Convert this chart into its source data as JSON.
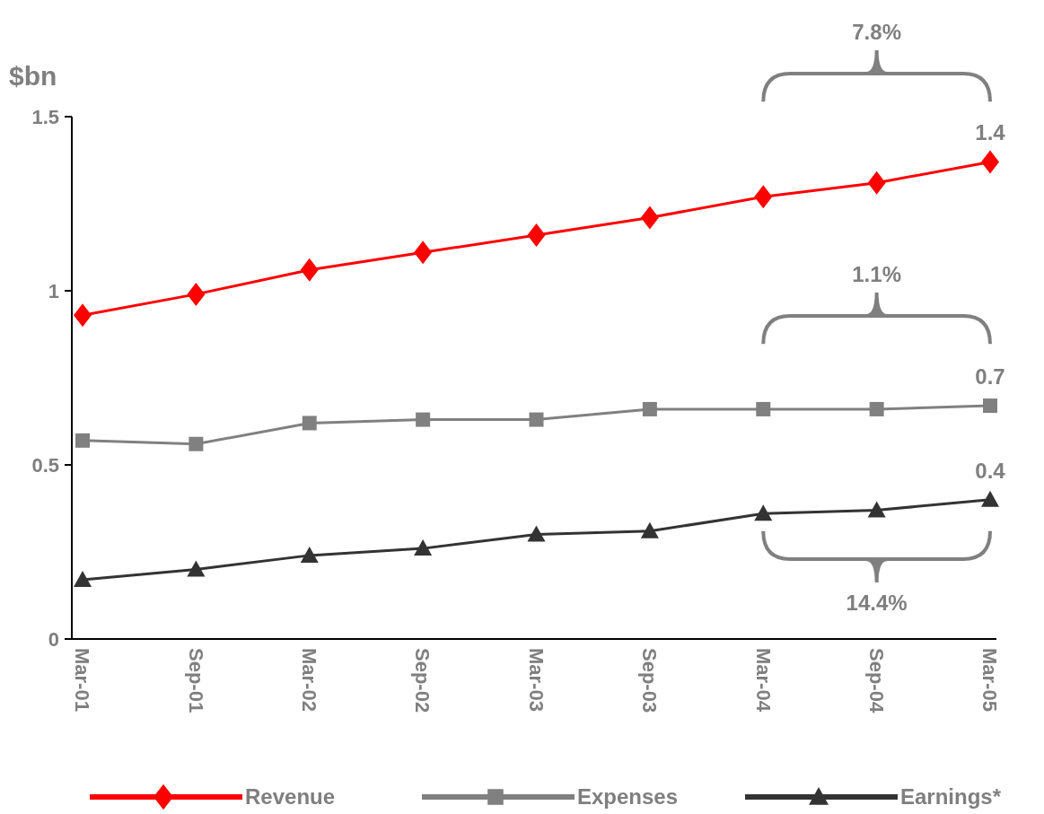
{
  "chart_data": {
    "type": "line",
    "ylabel": "$bn",
    "categories": [
      "Mar-01",
      "Sep-01",
      "Mar-02",
      "Sep-02",
      "Mar-03",
      "Sep-03",
      "Mar-04",
      "Sep-04",
      "Mar-05"
    ],
    "series": [
      {
        "name": "Revenue",
        "color": "#ff0000",
        "marker": "diamond",
        "values": [
          0.93,
          0.99,
          1.06,
          1.11,
          1.16,
          1.21,
          1.27,
          1.31,
          1.37
        ],
        "value_labels": [
          null,
          null,
          null,
          null,
          null,
          null,
          null,
          null,
          "1.4"
        ]
      },
      {
        "name": "Expenses",
        "color": "#808080",
        "marker": "square",
        "values": [
          0.57,
          0.56,
          0.62,
          0.63,
          0.63,
          0.66,
          0.66,
          0.66,
          0.67
        ],
        "value_labels": [
          null,
          null,
          null,
          null,
          null,
          null,
          null,
          null,
          "0.7"
        ]
      },
      {
        "name": "Earnings*",
        "color": "#333333",
        "marker": "triangle",
        "values": [
          0.17,
          0.2,
          0.24,
          0.26,
          0.3,
          0.31,
          0.36,
          0.37,
          0.4
        ],
        "value_labels": [
          null,
          null,
          null,
          null,
          null,
          null,
          null,
          null,
          "0.4"
        ]
      }
    ],
    "ylim": [
      0,
      1.5
    ],
    "yticks": [
      0,
      0.5,
      1,
      1.5
    ],
    "grid": false,
    "legend": "bottom",
    "annotations": [
      "7.8%",
      "1.1%",
      "14.4%"
    ]
  }
}
